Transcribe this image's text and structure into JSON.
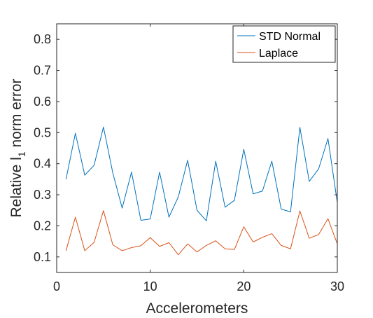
{
  "chart_data": {
    "type": "line",
    "xlabel": "Accelerometers",
    "ylabel_parts": {
      "before": "Relative l",
      "subscript": "1",
      "after": " norm error"
    },
    "xlim": [
      0,
      30
    ],
    "ylim": [
      0.05,
      0.85
    ],
    "xticks": [
      0,
      10,
      20,
      30
    ],
    "yticks": [
      0.1,
      0.2,
      0.3,
      0.4,
      0.5,
      0.6,
      0.7,
      0.8
    ],
    "grid": false,
    "legend_position": "top-right",
    "x": [
      1,
      2,
      3,
      4,
      5,
      6,
      7,
      8,
      9,
      10,
      11,
      12,
      13,
      14,
      15,
      16,
      17,
      18,
      19,
      20,
      21,
      22,
      23,
      24,
      25,
      26,
      27,
      28,
      29,
      30
    ],
    "series": [
      {
        "name": "STD Normal",
        "color": "#0072BD",
        "values": [
          0.35,
          0.498,
          0.363,
          0.395,
          0.518,
          0.37,
          0.257,
          0.373,
          0.218,
          0.222,
          0.373,
          0.228,
          0.293,
          0.411,
          0.25,
          0.216,
          0.408,
          0.26,
          0.282,
          0.446,
          0.303,
          0.312,
          0.408,
          0.254,
          0.245,
          0.517,
          0.343,
          0.383,
          0.481,
          0.275
        ]
      },
      {
        "name": "Laplace",
        "color": "#D95319",
        "values": [
          0.12,
          0.228,
          0.12,
          0.147,
          0.249,
          0.139,
          0.12,
          0.13,
          0.136,
          0.162,
          0.134,
          0.146,
          0.107,
          0.142,
          0.116,
          0.137,
          0.152,
          0.126,
          0.124,
          0.197,
          0.148,
          0.163,
          0.175,
          0.137,
          0.126,
          0.248,
          0.16,
          0.172,
          0.223,
          0.142
        ]
      }
    ]
  }
}
